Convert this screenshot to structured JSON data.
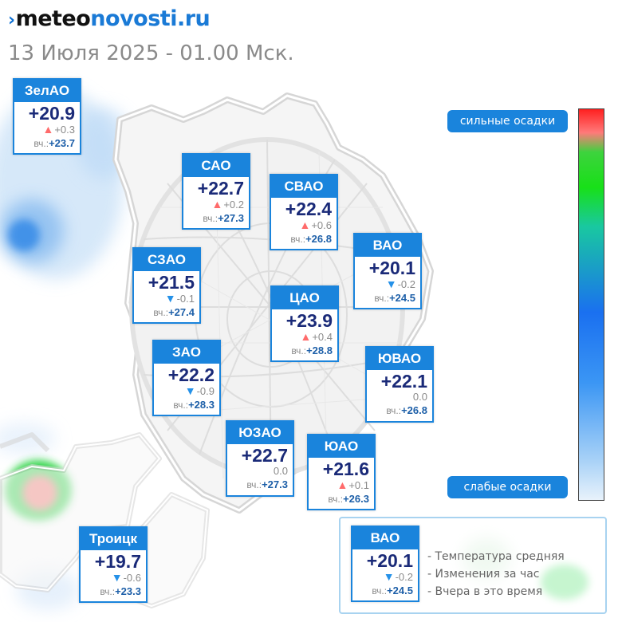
{
  "brand": {
    "mark": "›",
    "part1": "meteo",
    "part2": "novosti",
    "part3": ".ru"
  },
  "subtitle": "13 Июля 2025 - 01.00 Мск.",
  "precip_legend": {
    "strong": "сильные осадки",
    "weak": "слабые осадки"
  },
  "colors": {
    "accent": "#1a84dc",
    "temp": "#1a2a78",
    "up": "#ff6b6b",
    "down": "#2591e8"
  },
  "districts": [
    {
      "id": "zelao",
      "name": "ЗелАО",
      "temp": "+20.9",
      "dir": "up",
      "change": "+0.3",
      "yest_label": "вч.:",
      "yest": "+23.7"
    },
    {
      "id": "sao",
      "name": "САО",
      "temp": "+22.7",
      "dir": "up",
      "change": "+0.2",
      "yest_label": "вч.:",
      "yest": "+27.3"
    },
    {
      "id": "svao",
      "name": "СВАО",
      "temp": "+22.4",
      "dir": "up",
      "change": "+0.6",
      "yest_label": "вч.:",
      "yest": "+26.8"
    },
    {
      "id": "vao",
      "name": "ВАО",
      "temp": "+20.1",
      "dir": "down",
      "change": "-0.2",
      "yest_label": "вч.:",
      "yest": "+24.5"
    },
    {
      "id": "szao",
      "name": "СЗАО",
      "temp": "+21.5",
      "dir": "down",
      "change": "-0.1",
      "yest_label": "вч.:",
      "yest": "+27.4"
    },
    {
      "id": "cao",
      "name": "ЦАО",
      "temp": "+23.9",
      "dir": "up",
      "change": "+0.4",
      "yest_label": "вч.:",
      "yest": "+28.8"
    },
    {
      "id": "zao",
      "name": "ЗАО",
      "temp": "+22.2",
      "dir": "down",
      "change": "-0.9",
      "yest_label": "вч.:",
      "yest": "+28.3"
    },
    {
      "id": "yuvao",
      "name": "ЮВАО",
      "temp": "+22.1",
      "dir": "none",
      "change": "0.0",
      "yest_label": "вч.:",
      "yest": "+26.8"
    },
    {
      "id": "yuzao",
      "name": "ЮЗАО",
      "temp": "+22.7",
      "dir": "none",
      "change": "0.0",
      "yest_label": "вч.:",
      "yest": "+27.3"
    },
    {
      "id": "yuao",
      "name": "ЮАО",
      "temp": "+21.6",
      "dir": "up",
      "change": "+0.1",
      "yest_label": "вч.:",
      "yest": "+26.3"
    },
    {
      "id": "troick",
      "name": "Троицк",
      "temp": "+19.7",
      "dir": "down",
      "change": "-0.6",
      "yest_label": "вч.:",
      "yest": "+23.3"
    }
  ],
  "legend": {
    "sample": {
      "name": "ВАО",
      "temp": "+20.1",
      "dir": "down",
      "change": "-0.2",
      "yest_label": "вч.:",
      "yest": "+24.5"
    },
    "lines": [
      "- Температура средняя",
      "- Изменения за час",
      "- Вчера в это время"
    ]
  }
}
